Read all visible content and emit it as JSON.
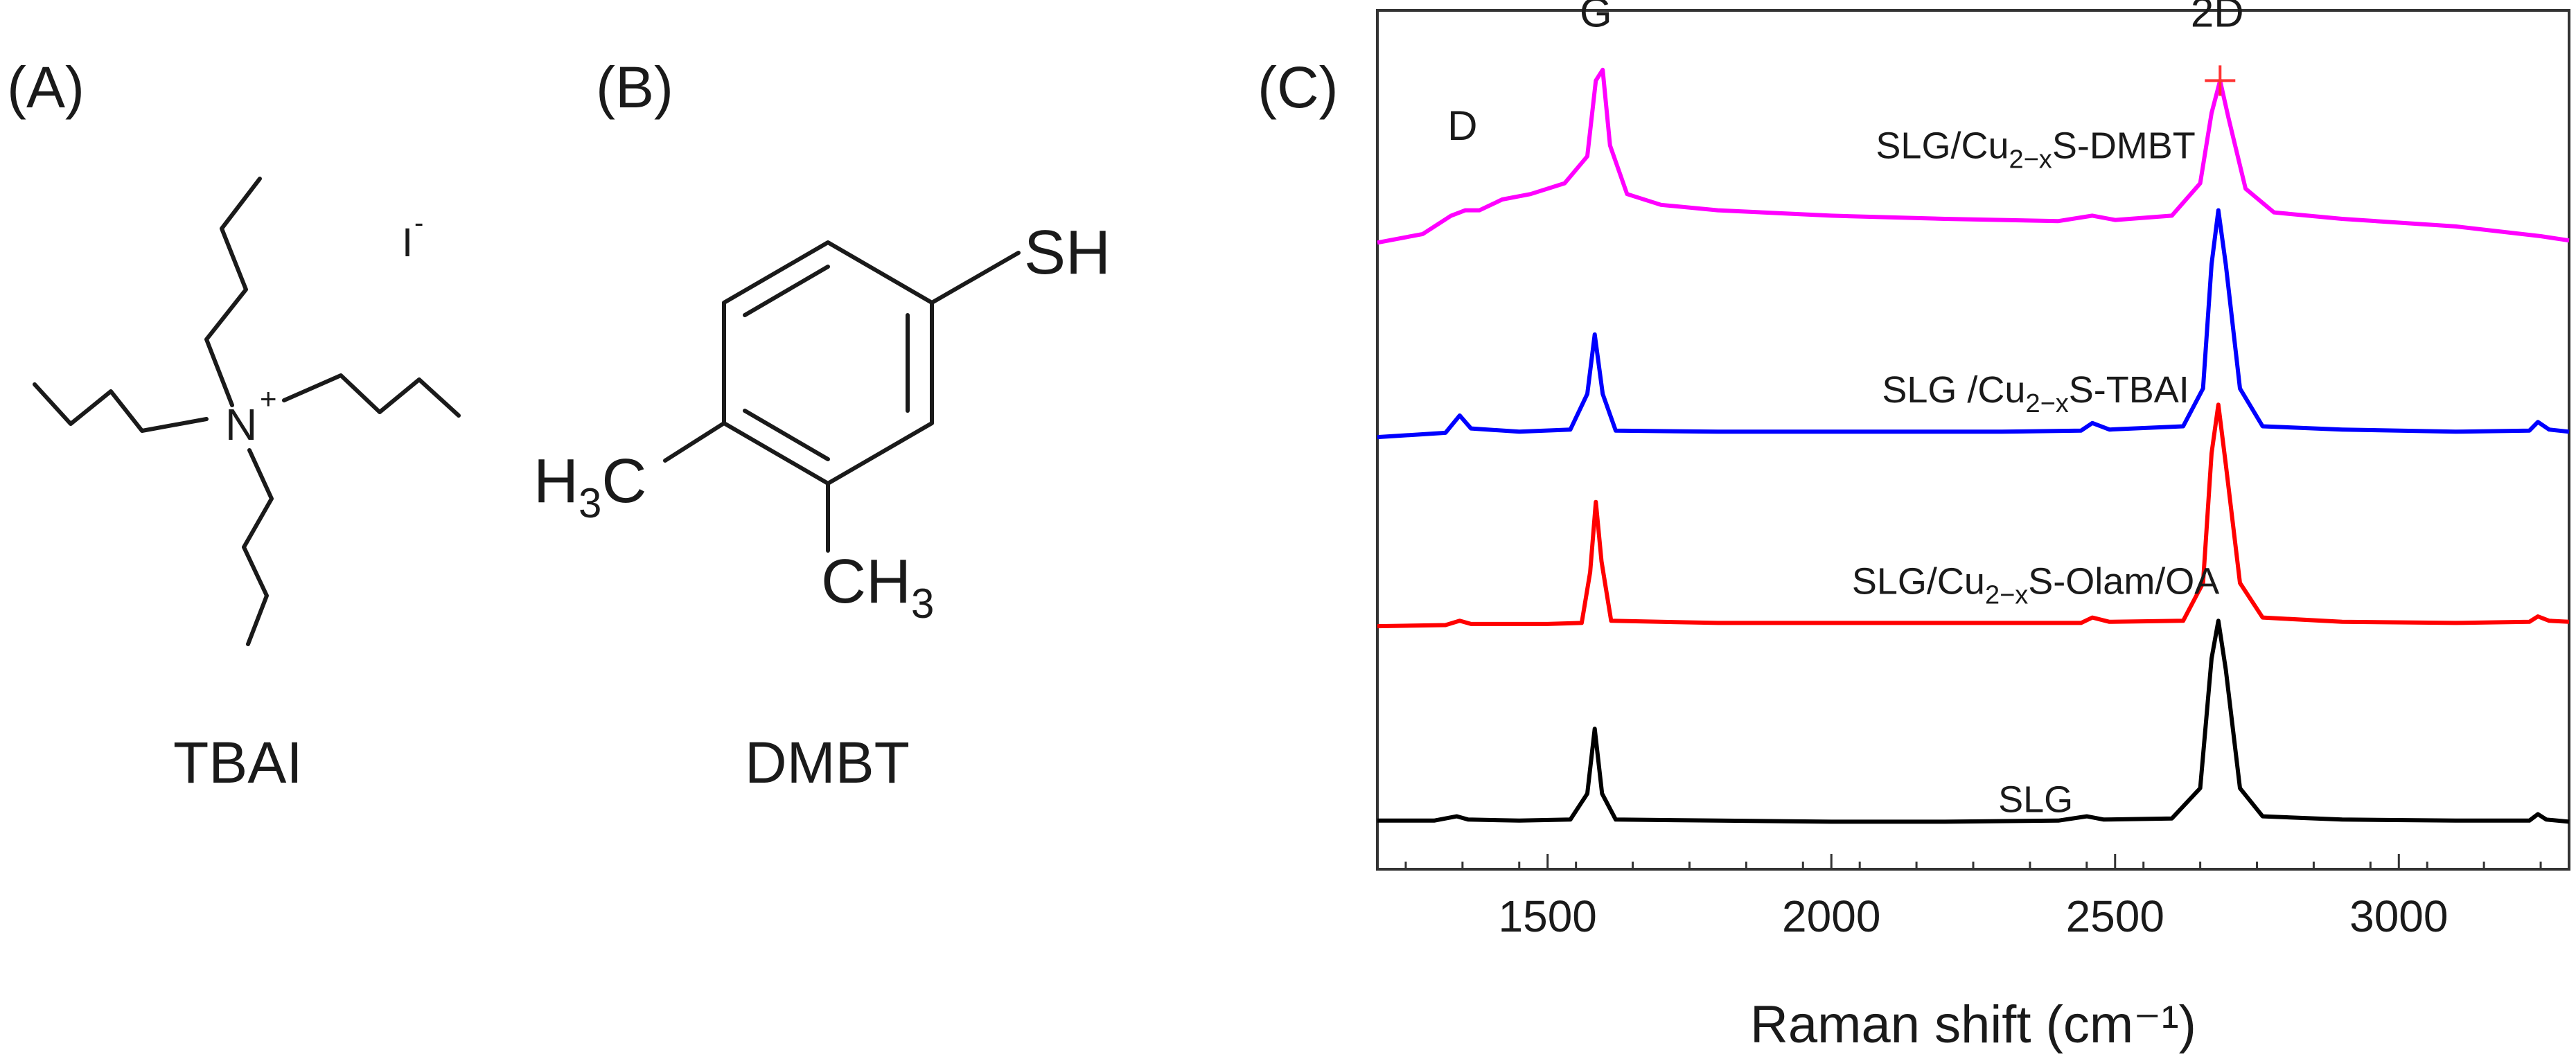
{
  "panels": {
    "a": {
      "label": "(A)",
      "caption": "TBAI",
      "cation": "N",
      "cation_charge": "+",
      "anion": "I",
      "anion_charge": "-"
    },
    "b": {
      "label": "(B)",
      "caption": "DMBT",
      "thiol": "SH",
      "methyl_left": "H3C",
      "methyl_bottom": "CH3"
    },
    "c": {
      "label": "(C)"
    }
  },
  "chart_data": {
    "type": "line",
    "title": "",
    "xlabel": "Raman shift (cm⁻¹)",
    "ylabel": "",
    "xlim": [
      1200,
      3300
    ],
    "x_ticks": [
      1500,
      2000,
      2500,
      3000
    ],
    "x_tick_labels": [
      "1500",
      "2000",
      "2500",
      "3000"
    ],
    "y_ticks_shown": false,
    "peak_labels": [
      {
        "text": "D",
        "x": 1350
      },
      {
        "text": "G",
        "x": 1585
      },
      {
        "text": "2D",
        "x": 2680
      }
    ],
    "series": [
      {
        "name": "SLG",
        "color": "#000000",
        "baseline": 0.0,
        "points": [
          [
            1200,
            0.1
          ],
          [
            1300,
            0.1
          ],
          [
            1340,
            0.14
          ],
          [
            1360,
            0.11
          ],
          [
            1450,
            0.1
          ],
          [
            1540,
            0.11
          ],
          [
            1570,
            0.35
          ],
          [
            1583,
            0.95
          ],
          [
            1596,
            0.35
          ],
          [
            1620,
            0.11
          ],
          [
            1800,
            0.1
          ],
          [
            2000,
            0.09
          ],
          [
            2200,
            0.09
          ],
          [
            2400,
            0.1
          ],
          [
            2450,
            0.14
          ],
          [
            2480,
            0.11
          ],
          [
            2600,
            0.12
          ],
          [
            2650,
            0.4
          ],
          [
            2670,
            1.6
          ],
          [
            2682,
            1.95
          ],
          [
            2695,
            1.5
          ],
          [
            2720,
            0.4
          ],
          [
            2760,
            0.14
          ],
          [
            2900,
            0.11
          ],
          [
            3100,
            0.1
          ],
          [
            3230,
            0.1
          ],
          [
            3245,
            0.16
          ],
          [
            3260,
            0.11
          ],
          [
            3300,
            0.09
          ]
        ]
      },
      {
        "name": "SLG/Cu2-xS-Olam/OA",
        "color": "#ff0000",
        "baseline": 1.9,
        "points": [
          [
            1200,
            0.0
          ],
          [
            1320,
            0.01
          ],
          [
            1345,
            0.05
          ],
          [
            1365,
            0.02
          ],
          [
            1500,
            0.02
          ],
          [
            1560,
            0.03
          ],
          [
            1575,
            0.5
          ],
          [
            1585,
            1.15
          ],
          [
            1595,
            0.6
          ],
          [
            1612,
            0.05
          ],
          [
            1800,
            0.03
          ],
          [
            2000,
            0.03
          ],
          [
            2300,
            0.03
          ],
          [
            2440,
            0.03
          ],
          [
            2460,
            0.08
          ],
          [
            2490,
            0.04
          ],
          [
            2620,
            0.05
          ],
          [
            2655,
            0.4
          ],
          [
            2670,
            1.6
          ],
          [
            2682,
            2.05
          ],
          [
            2695,
            1.5
          ],
          [
            2720,
            0.4
          ],
          [
            2760,
            0.08
          ],
          [
            2900,
            0.04
          ],
          [
            3100,
            0.03
          ],
          [
            3230,
            0.04
          ],
          [
            3245,
            0.09
          ],
          [
            3265,
            0.05
          ],
          [
            3300,
            0.04
          ]
        ]
      },
      {
        "name": "SLG /Cu2-xS-TBAI",
        "color": "#0000ff",
        "baseline": 3.65,
        "points": [
          [
            1200,
            0.0
          ],
          [
            1320,
            0.04
          ],
          [
            1345,
            0.2
          ],
          [
            1365,
            0.08
          ],
          [
            1450,
            0.05
          ],
          [
            1540,
            0.07
          ],
          [
            1570,
            0.4
          ],
          [
            1583,
            0.95
          ],
          [
            1597,
            0.4
          ],
          [
            1620,
            0.06
          ],
          [
            1800,
            0.05
          ],
          [
            2000,
            0.05
          ],
          [
            2300,
            0.05
          ],
          [
            2440,
            0.06
          ],
          [
            2460,
            0.13
          ],
          [
            2490,
            0.07
          ],
          [
            2620,
            0.1
          ],
          [
            2655,
            0.45
          ],
          [
            2670,
            1.6
          ],
          [
            2682,
            2.1
          ],
          [
            2695,
            1.6
          ],
          [
            2720,
            0.45
          ],
          [
            2760,
            0.1
          ],
          [
            2900,
            0.07
          ],
          [
            3100,
            0.05
          ],
          [
            3230,
            0.06
          ],
          [
            3245,
            0.14
          ],
          [
            3265,
            0.07
          ],
          [
            3300,
            0.05
          ]
        ]
      },
      {
        "name": "SLG/Cu2-xS-DMBT",
        "color": "#ff00ff",
        "baseline": 5.45,
        "points": [
          [
            1200,
            0.0
          ],
          [
            1280,
            0.08
          ],
          [
            1330,
            0.25
          ],
          [
            1355,
            0.3
          ],
          [
            1380,
            0.3
          ],
          [
            1420,
            0.4
          ],
          [
            1470,
            0.45
          ],
          [
            1530,
            0.55
          ],
          [
            1570,
            0.8
          ],
          [
            1585,
            1.5
          ],
          [
            1597,
            1.6
          ],
          [
            1610,
            0.9
          ],
          [
            1640,
            0.45
          ],
          [
            1700,
            0.35
          ],
          [
            1800,
            0.3
          ],
          [
            2000,
            0.25
          ],
          [
            2200,
            0.22
          ],
          [
            2400,
            0.2
          ],
          [
            2460,
            0.25
          ],
          [
            2500,
            0.21
          ],
          [
            2600,
            0.25
          ],
          [
            2650,
            0.55
          ],
          [
            2670,
            1.2
          ],
          [
            2685,
            1.5
          ],
          [
            2700,
            1.15
          ],
          [
            2730,
            0.5
          ],
          [
            2780,
            0.28
          ],
          [
            2900,
            0.22
          ],
          [
            3100,
            0.15
          ],
          [
            3250,
            0.06
          ],
          [
            3300,
            0.02
          ]
        ]
      }
    ],
    "series_label_text": [
      {
        "parts": [
          "SLG/Cu",
          "2−x",
          "S-DMBT"
        ]
      },
      {
        "parts": [
          "SLG /Cu",
          "2−x",
          "S-TBAI"
        ]
      },
      {
        "parts": [
          "SLG/Cu",
          "2−x",
          "S-Olam/OA"
        ]
      },
      {
        "parts": [
          "SLG",
          "",
          ""
        ]
      }
    ],
    "marker": {
      "symbol": "+",
      "series": "SLG/Cu2-xS-DMBT",
      "x": 2685,
      "color": "#ff3333"
    }
  }
}
